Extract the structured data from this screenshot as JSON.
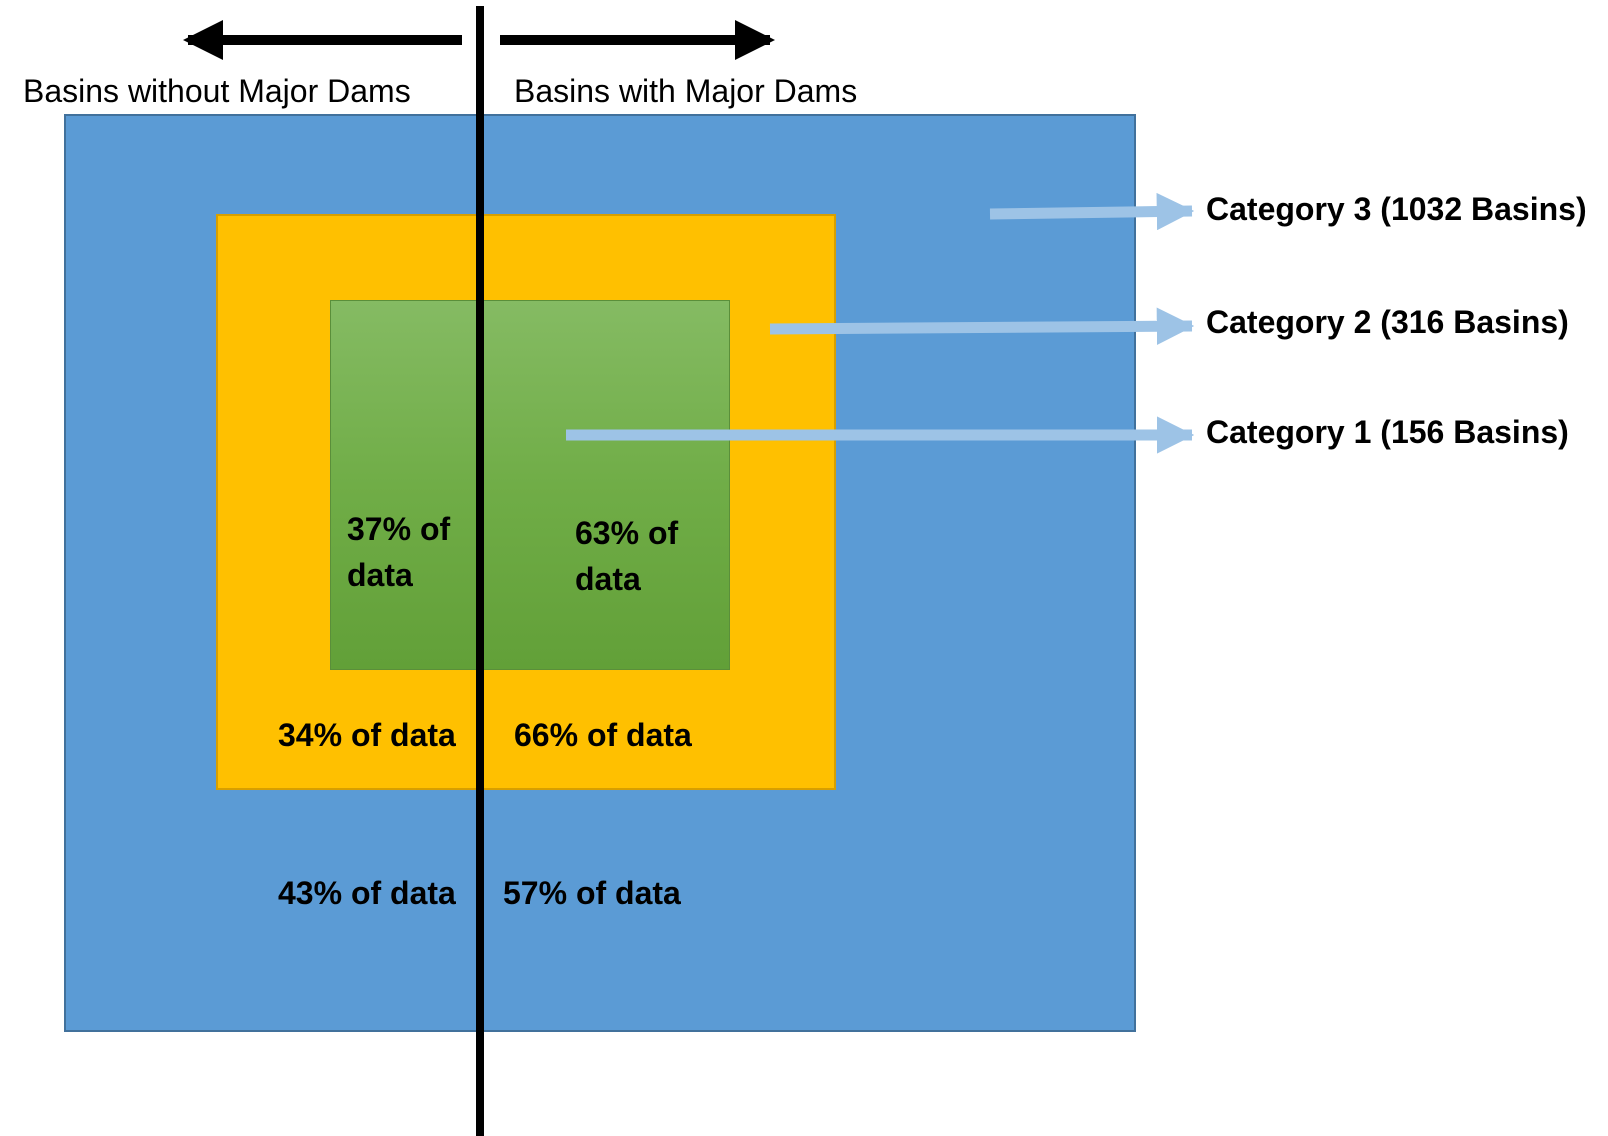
{
  "headers": {
    "left": "Basins without Major Dams",
    "right": "Basins with Major Dams"
  },
  "categories": [
    {
      "label": "Category 3 (1032 Basins)",
      "color": "#5b9bd5"
    },
    {
      "label": "Category 2 (316 Basins)",
      "color": "#ffc000"
    },
    {
      "label": "Category 1 (156 Basins)",
      "color": "#70ad47"
    }
  ],
  "percentages": {
    "cat1_left": "37% of data",
    "cat1_right": "63% of data",
    "cat2_left": "34% of data",
    "cat2_right": "66% of data",
    "cat3_left": "43% of data",
    "cat3_right": "57% of data"
  },
  "colors": {
    "pointer_arrow": "#9dc3e6",
    "divider": "#000000"
  }
}
